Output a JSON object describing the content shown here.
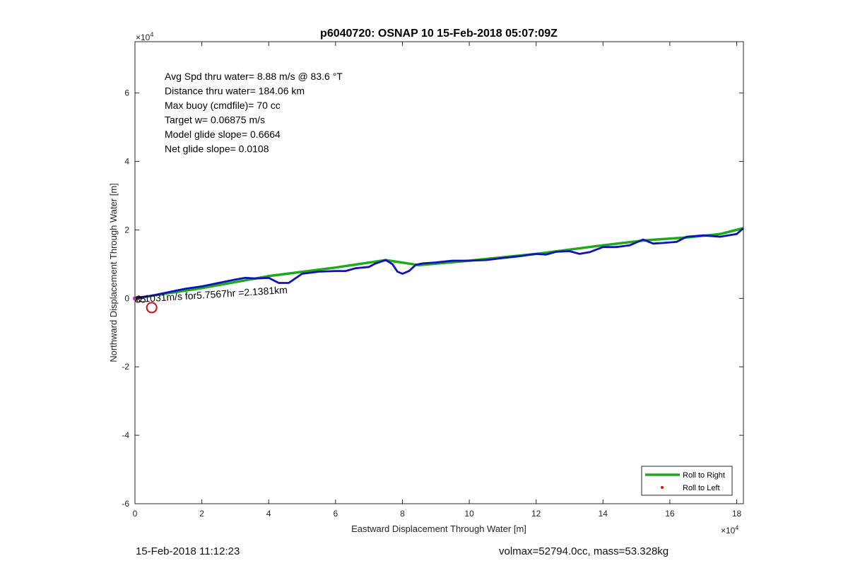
{
  "chart_data": {
    "type": "line",
    "title": "p6040720: OSNAP 10 15-Feb-2018 05:07:09Z",
    "xlabel": "Eastward Displacement Through Water [m]",
    "ylabel": "Northward Displacement Through Water [m]",
    "x_exponent_label": "×10",
    "x_exponent_power": "4",
    "y_exponent_label": "×10",
    "y_exponent_power": "4",
    "xlim": [
      0,
      18.2
    ],
    "ylim": [
      -6,
      7.5
    ],
    "x_ticks": [
      0,
      2,
      4,
      6,
      8,
      10,
      12,
      14,
      16,
      18
    ],
    "y_ticks": [
      -6,
      -4,
      -2,
      0,
      2,
      4,
      6
    ],
    "x_tick_labels": [
      "0",
      "2",
      "4",
      "6",
      "8",
      "10",
      "12",
      "14",
      "16",
      "18"
    ],
    "y_tick_labels": [
      "-6",
      "-4",
      "-2",
      "0",
      "2",
      "4",
      "6"
    ],
    "grid": false,
    "legend_position": "bottom-right",
    "annotations": [
      "Avg Spd thru water=  8.88 m/s @  83.6 °T",
      "Distance thru water= 184.06 km",
      "Max buoy (cmdfile)= 70 cc",
      "Target w= 0.06875 m/s",
      "Model glide slope= 0.6664",
      "Net glide slope= 0.0108"
    ],
    "current_label": "0.1031m/s for5.7567hr =2.1381km",
    "current_label_overlap": "85",
    "current_marker": {
      "x": 0.5,
      "y": -0.27
    },
    "series": [
      {
        "name": "Roll to Right",
        "color": "#1aaa1a",
        "x": [
          0,
          2.0,
          4.0,
          6.0,
          7.5,
          8.5,
          10.0,
          12.0,
          14.0,
          15.3,
          16.5,
          17.5,
          18.2
        ],
        "y": [
          0,
          0.3,
          0.65,
          0.9,
          1.12,
          0.97,
          1.1,
          1.3,
          1.55,
          1.7,
          1.78,
          1.88,
          2.05
        ]
      },
      {
        "name": "Roll to Left",
        "color": "#dd1111",
        "x": [
          0.02,
          0.05
        ],
        "y": [
          0.0,
          0.01
        ]
      },
      {
        "name": "",
        "color": "#1111bb",
        "x": [
          0,
          0.5,
          1.0,
          1.5,
          2.0,
          2.5,
          3.0,
          3.3,
          3.6,
          4.0,
          4.3,
          4.6,
          5.0,
          5.5,
          6.0,
          6.3,
          6.6,
          7.0,
          7.2,
          7.5,
          7.7,
          7.85,
          8.0,
          8.2,
          8.4,
          8.6,
          9.0,
          9.5,
          10.0,
          10.5,
          11.0,
          11.5,
          12.0,
          12.3,
          12.6,
          13.0,
          13.3,
          13.6,
          14.0,
          14.4,
          14.8,
          15.2,
          15.5,
          15.8,
          16.2,
          16.5,
          17.0,
          17.5,
          18.0,
          18.2
        ],
        "y": [
          0,
          0.08,
          0.18,
          0.28,
          0.35,
          0.45,
          0.55,
          0.6,
          0.58,
          0.6,
          0.45,
          0.45,
          0.72,
          0.78,
          0.8,
          0.8,
          0.88,
          0.92,
          1.02,
          1.12,
          1.0,
          0.78,
          0.72,
          0.8,
          0.98,
          1.02,
          1.05,
          1.1,
          1.1,
          1.12,
          1.18,
          1.23,
          1.3,
          1.28,
          1.36,
          1.38,
          1.3,
          1.35,
          1.5,
          1.5,
          1.55,
          1.72,
          1.6,
          1.62,
          1.65,
          1.8,
          1.84,
          1.8,
          1.88,
          2.05
        ]
      }
    ]
  },
  "footer": {
    "timestamp": "15-Feb-2018 11:12:23",
    "volmax_mass": "volmax=52794.0cc, mass=53.328kg"
  }
}
